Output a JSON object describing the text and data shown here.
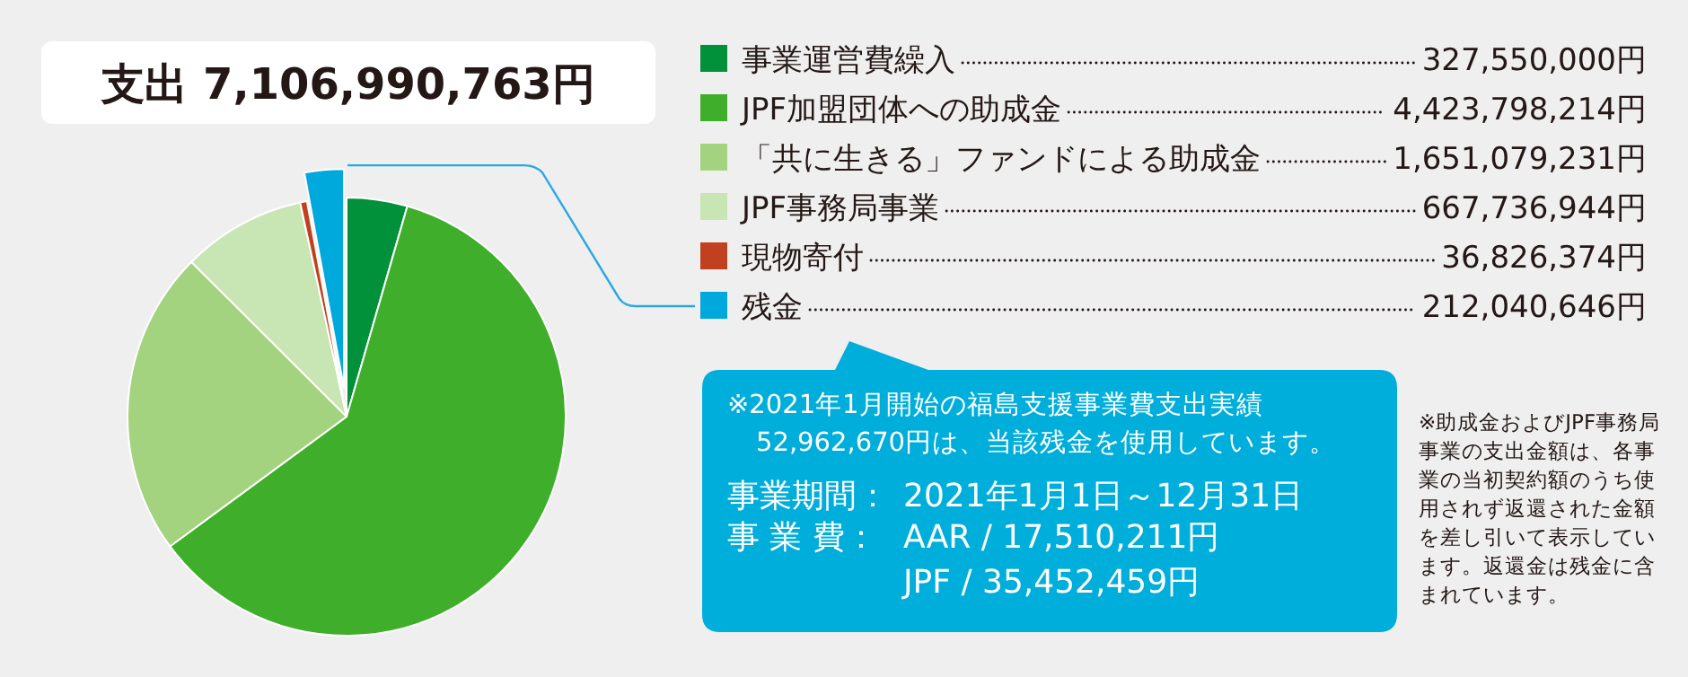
{
  "chart_data": {
    "type": "pie",
    "title": "支出 7,106,990,763円",
    "categories": [
      "事業運営費繰入",
      "JPF加盟団体への助成金",
      "「共に生きる」ファンドによる助成金",
      "JPF事務局事業",
      "現物寄付",
      "残金"
    ],
    "values": [
      327550000,
      4423798214,
      1651079231,
      667736944,
      36826374,
      212040646
    ],
    "value_labels": [
      "327,550,000円",
      "4,423,798,214円",
      "1,651,079,231円",
      "667,736,944円",
      "36,826,374円",
      "212,040,646円"
    ],
    "colors": [
      "#00913a",
      "#3fae2a",
      "#a3d37f",
      "#c8e6b4",
      "#c0401f",
      "#00a9dc"
    ],
    "legend": "right",
    "annotations": [
      "※2021年1月開始の福島支援事業費支出実績",
      "52,962,670円は、当該残金を使用しています。",
      "事業期間：",
      "2021年1月1日～12月31日",
      "事 業 費：",
      "AAR / 17,510,211円",
      "JPF / 35,452,459円",
      "※助成金およびJPF事務局事業の支出金額は、各事業の当初契約額のうち使用されず返還された金額を差し引いて表示しています。返還金は残金に含まれています。"
    ]
  }
}
